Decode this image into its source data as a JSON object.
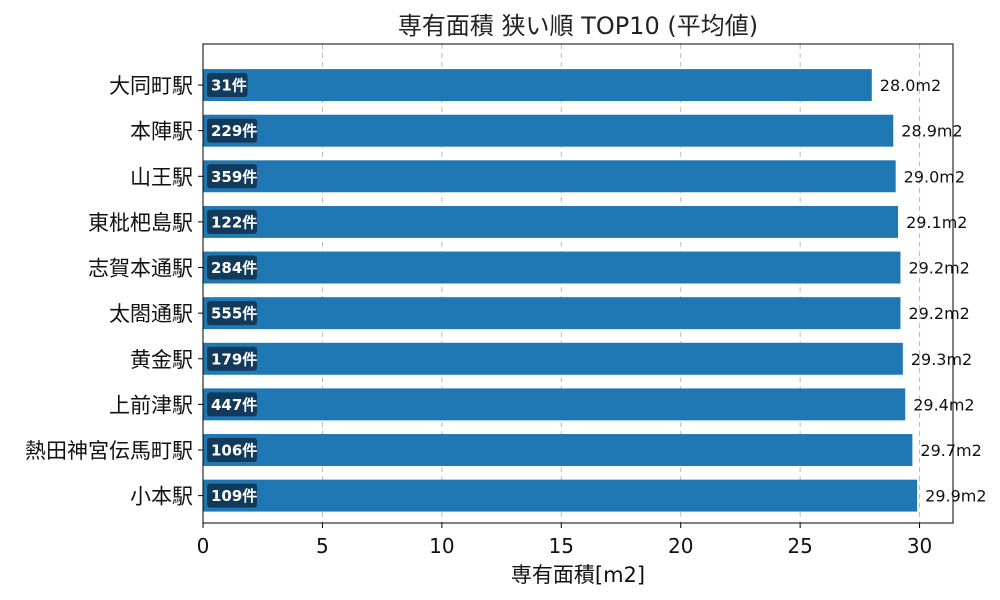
{
  "chart_data": {
    "type": "bar",
    "orientation": "horizontal",
    "title": "専有面積 狭い順 TOP10 (平均値)",
    "xlabel": "専有面積[m2]",
    "ylabel": "",
    "xlim": [
      0,
      31.4
    ],
    "xticks": [
      0,
      5,
      10,
      15,
      20,
      25,
      30
    ],
    "grid": "x-dashed",
    "categories": [
      "大同町駅",
      "本陣駅",
      "山王駅",
      "東枇杷島駅",
      "志賀本通駅",
      "太閤通駅",
      "黄金駅",
      "上前津駅",
      "熱田神宮伝馬町駅",
      "小本駅"
    ],
    "values": [
      28.0,
      28.9,
      29.0,
      29.1,
      29.2,
      29.2,
      29.3,
      29.4,
      29.7,
      29.9
    ],
    "value_labels": [
      "28.0m2",
      "28.9m2",
      "29.0m2",
      "29.1m2",
      "29.2m2",
      "29.2m2",
      "29.3m2",
      "29.4m2",
      "29.7m2",
      "29.9m2"
    ],
    "count_labels": [
      "31件",
      "229件",
      "359件",
      "122件",
      "284件",
      "555件",
      "179件",
      "447件",
      "106件",
      "109件"
    ],
    "colors": {
      "bar": "#1f77b4",
      "count_badge": "#123a5a",
      "grid": "#bbbbbb",
      "axis": "#000000"
    }
  }
}
